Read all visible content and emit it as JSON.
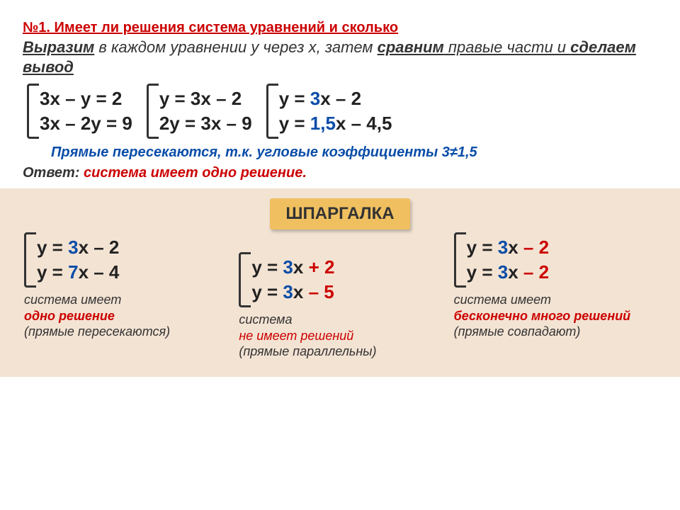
{
  "title": "№1. Имеет ли решения система уравнений и сколько",
  "instr": {
    "p1a": "Выразим",
    "p1b": " в каждом уравнении у через х, затем ",
    "p1c": "сравним",
    "p2a": " правые части и ",
    "p2b": "сделаем вывод"
  },
  "systems_row1": {
    "s1": {
      "l1": "3х – у = 2",
      "l2": "3х – 2у = 9"
    },
    "s2": {
      "l1": "у = 3х – 2",
      "l2": "2у = 3х – 9"
    },
    "s3": {
      "l1a": "у = ",
      "l1b": "3",
      "l1c": "х – 2",
      "l2a": "у = ",
      "l2b": "1,5",
      "l2c": "х – 4,5"
    }
  },
  "note": "Прямые пересекаются, т.к. угловые коэффициенты 3≠1,5",
  "answer_lbl": "Ответ:  ",
  "answer_txt": "система имеет одно решение.",
  "cheat_title": "ШПАРГАЛКА",
  "cheat": {
    "c1": {
      "l1a": "у = ",
      "l1b": "3",
      "l1c": "х – 2",
      "l2a": "у = ",
      "l2b": "7",
      "l2c": "х – 4",
      "d1": "система имеет",
      "d2": "одно решение",
      "d3": "(прямые пересекаются)"
    },
    "c2": {
      "l1a": "у = ",
      "l1b": "3",
      "l1c": "х ",
      "l1d": "+ 2",
      "l2a": "у = ",
      "l2b": "3",
      "l2c": "х ",
      "l2d": "– 5",
      "d1": "система",
      "d2": "не имеет решений",
      "d3": "(прямые параллельны)"
    },
    "c3": {
      "l1a": "у = ",
      "l1b": "3",
      "l1c": "х ",
      "l1d": "– 2",
      "l2a": "у = ",
      "l2b": "3",
      "l2c": "х ",
      "l2d": "– 2",
      "d1": "система имеет",
      "d2": "бесконечно много решений",
      "d3": "(прямые совпадают)"
    }
  }
}
